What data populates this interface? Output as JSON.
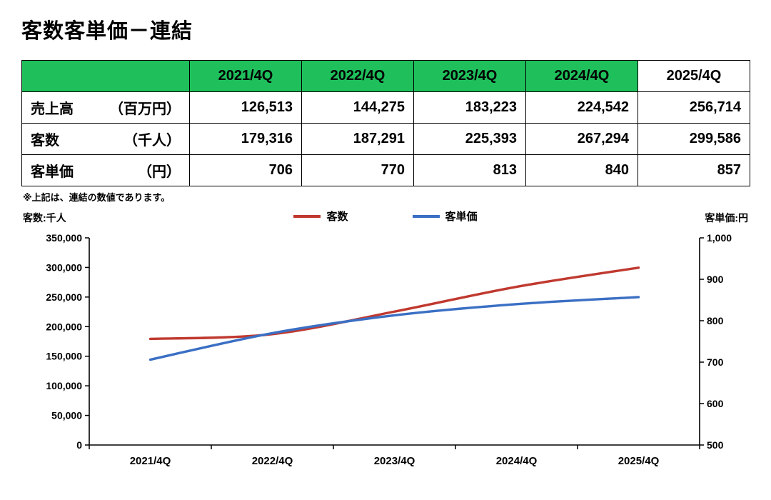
{
  "page": {
    "title": "客数客単価－連結",
    "note": "※上記は、連結の数値であります。"
  },
  "table": {
    "header_color": "#1fc05c",
    "col_headers": [
      "",
      "2021/4Q",
      "2022/4Q",
      "2023/4Q",
      "2024/4Q",
      "2025/4Q"
    ],
    "rows": [
      {
        "label": "売上高",
        "unit": "（百万円）",
        "values": [
          "126,513",
          "144,275",
          "183,223",
          "224,542",
          "256,714"
        ]
      },
      {
        "label": "客数",
        "unit": "（千人）",
        "values": [
          "179,316",
          "187,291",
          "225,393",
          "267,294",
          "299,586"
        ]
      },
      {
        "label": "客単価",
        "unit": "（円）",
        "values": [
          "706",
          "770",
          "813",
          "840",
          "857"
        ]
      }
    ]
  },
  "legend": [
    {
      "label": "客数",
      "color": "#c0392f"
    },
    {
      "label": "客単価",
      "color": "#3a6fc4"
    }
  ],
  "axis_units": {
    "left": "客数:千人",
    "right": "客単価:円"
  },
  "chart_data": {
    "type": "line",
    "categories": [
      "2021/4Q",
      "2022/4Q",
      "2023/4Q",
      "2024/4Q",
      "2025/4Q"
    ],
    "series": [
      {
        "name": "客数",
        "axis": "left",
        "color": "#c0392f",
        "values": [
          179316,
          187291,
          225393,
          267294,
          299586
        ]
      },
      {
        "name": "客単価",
        "axis": "right",
        "color": "#3a6fc4",
        "values": [
          706,
          770,
          813,
          840,
          857
        ]
      }
    ],
    "left_axis": {
      "label": "客数:千人",
      "min": 0,
      "max": 350000,
      "step": 50000
    },
    "right_axis": {
      "label": "客単価:円",
      "min": 500,
      "max": 1000,
      "step": 100
    },
    "grid": false,
    "legend_position": "top-center"
  }
}
